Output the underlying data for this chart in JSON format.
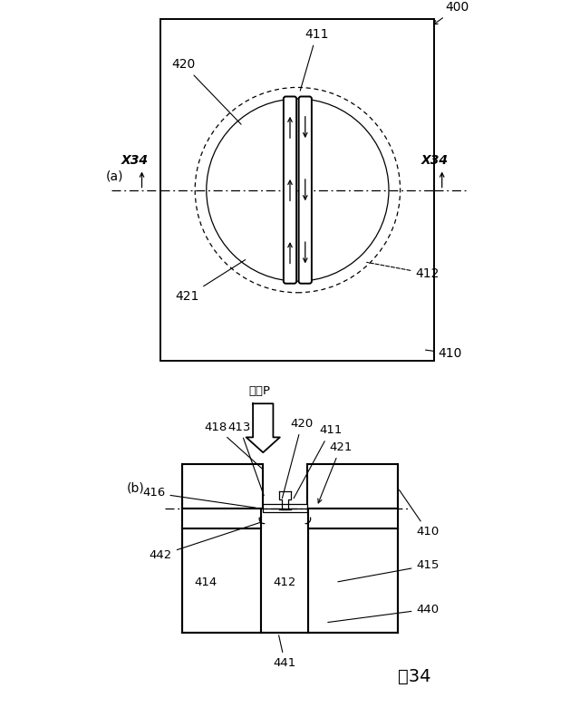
{
  "bg_color": "#ffffff",
  "line_color": "#000000",
  "figure_label_a": "(a)",
  "figure_label_b": "(b)",
  "figure_number": "図34",
  "ref_400": "400",
  "ref_410a": "410",
  "ref_411a": "411",
  "ref_412a": "412",
  "ref_420": "420",
  "ref_421a": "421",
  "ref_x34_left": "X34",
  "ref_x34_right": "X34",
  "ref_410b": "410",
  "ref_411b": "411",
  "ref_412b": "412",
  "ref_413": "413",
  "ref_414": "414",
  "ref_415": "415",
  "ref_416": "416",
  "ref_418": "418",
  "ref_420b": "420",
  "ref_421b": "421",
  "ref_440": "440",
  "ref_441": "441",
  "ref_442": "442",
  "pressure_label": "圧力P"
}
